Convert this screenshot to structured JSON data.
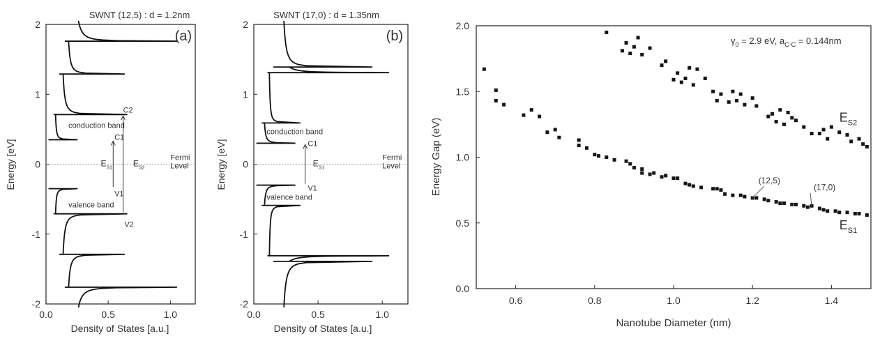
{
  "chart_data": [
    {
      "type": "line",
      "title": "SWNT (12,5) : d = 1.2nm",
      "panel_label": "(a)",
      "xlabel": "Density of States [a.u.]",
      "ylabel": "Energy [eV]",
      "xlim": [
        0,
        1.2
      ],
      "ylim": [
        -2,
        2
      ],
      "xticks": [
        0,
        0.5,
        1
      ],
      "xtick_labels": [
        "0.0",
        "0.5",
        "1.0"
      ],
      "yticks": [
        -2,
        -1,
        0,
        1,
        2
      ],
      "ytick_labels": [
        "-2",
        "-1",
        "0",
        "1",
        "2"
      ],
      "van_hove_singularities": [
        {
          "energy": 0.35,
          "height": 0.25
        },
        {
          "energy": 0.71,
          "height": 0.65
        },
        {
          "energy": 1.29,
          "height": 0.63
        },
        {
          "energy": 1.76,
          "height": 1.05
        },
        {
          "energy": -0.35,
          "height": 0.25
        },
        {
          "energy": -0.71,
          "height": 0.65
        },
        {
          "energy": -1.29,
          "height": 0.63
        },
        {
          "energy": -1.76,
          "height": 1.05
        }
      ],
      "annotations": [
        {
          "text": "conduction band",
          "x": 0.18,
          "y": 0.56
        },
        {
          "text": "valence band",
          "x": 0.18,
          "y": -0.58
        },
        {
          "text": "C2",
          "x": 0.62,
          "y": 0.78
        },
        {
          "text": "C1",
          "x": 0.55,
          "y": 0.39
        },
        {
          "text": "V1",
          "x": 0.55,
          "y": -0.42
        },
        {
          "text": "V2",
          "x": 0.63,
          "y": -0.86
        },
        {
          "text": "Fermi",
          "x": 1.0,
          "y": 0.1
        },
        {
          "text": "Level",
          "x": 1.0,
          "y": -0.02
        }
      ],
      "gap_labels": [
        {
          "main": "E",
          "sub": "S1",
          "x": 0.44,
          "y": 0.01
        },
        {
          "main": "E",
          "sub": "S2",
          "x": 0.7,
          "y": 0.01
        }
      ]
    },
    {
      "type": "line",
      "title": "SWNT (17,0) : d = 1.35nm",
      "panel_label": "(b)",
      "xlabel": "Density of States [a.u.]",
      "ylabel": "Energy [eV]",
      "xlim": [
        0,
        1.2
      ],
      "ylim": [
        -2,
        2
      ],
      "xticks": [
        0,
        0.5,
        1
      ],
      "xtick_labels": [
        "0.0",
        "0.5",
        "1.0"
      ],
      "yticks": [
        -2,
        -1,
        0,
        1,
        2
      ],
      "ytick_labels": [
        "-2",
        "-1",
        "0",
        "1",
        "2"
      ],
      "van_hove_singularities": [
        {
          "energy": 0.3,
          "height": 0.32
        },
        {
          "energy": 0.59,
          "height": 0.36
        },
        {
          "energy": 1.31,
          "height": 1.05
        },
        {
          "energy": 1.39,
          "height": 0.92
        },
        {
          "energy": -0.3,
          "height": 0.32
        },
        {
          "energy": -0.59,
          "height": 0.36
        },
        {
          "energy": -1.31,
          "height": 1.05
        },
        {
          "energy": -1.39,
          "height": 0.92
        }
      ],
      "annotations": [
        {
          "text": "conduction band",
          "x": 0.1,
          "y": 0.47
        },
        {
          "text": "valence band",
          "x": 0.1,
          "y": -0.47
        },
        {
          "text": "C1",
          "x": 0.42,
          "y": 0.3
        },
        {
          "text": "V1",
          "x": 0.42,
          "y": -0.34
        },
        {
          "text": "Fermi",
          "x": 1.0,
          "y": 0.1
        },
        {
          "text": "Level",
          "x": 1.0,
          "y": -0.02
        }
      ],
      "gap_labels": [
        {
          "main": "E",
          "sub": "S1",
          "x": 0.46,
          "y": 0.01
        }
      ]
    },
    {
      "type": "scatter",
      "xlabel": "Nanotube Diameter (nm)",
      "ylabel": "Energy Gap (eV)",
      "xlim": [
        0.5,
        1.5
      ],
      "ylim": [
        0,
        2
      ],
      "xticks": [
        0.6,
        0.8,
        1.0,
        1.2,
        1.4
      ],
      "xtick_labels": [
        "0.6",
        "0.8",
        "1.0",
        "1.2",
        "1.4"
      ],
      "yticks": [
        0,
        0.5,
        1,
        1.5,
        2
      ],
      "ytick_labels": [
        "0.0",
        "0.5",
        "1.0",
        "1.5",
        "2.0"
      ],
      "parameter_text": {
        "gamma": "γ",
        "gamma_sub": "0",
        "gamma_rest": " = 2.9 eV,  a",
        "a_sub": "C-C",
        "a_rest": " = 0.144nm"
      },
      "series_labels": [
        {
          "main": "E",
          "sub": "S2",
          "x": 1.42,
          "y": 1.27
        },
        {
          "main": "E",
          "sub": "S1",
          "x": 1.42,
          "y": 0.45
        }
      ],
      "annotations": [
        {
          "text": "(12,5)",
          "x": 1.215,
          "y": 0.8,
          "target_x": 1.2,
          "target_y": 0.69
        },
        {
          "text": "(17,0)",
          "x": 1.355,
          "y": 0.75,
          "target_x": 1.35,
          "target_y": 0.63
        }
      ],
      "series": [
        {
          "x": [
            0.52,
            0.55,
            0.55,
            0.57,
            0.62,
            0.64,
            0.66,
            0.68,
            0.7,
            0.71,
            0.76,
            0.76,
            0.78,
            0.8,
            0.81,
            0.83,
            0.85,
            0.88,
            0.89,
            0.9,
            0.92,
            0.92,
            0.94,
            0.95,
            0.97,
            0.98,
            1.0,
            1.01,
            1.03,
            1.04,
            1.05,
            1.07,
            1.1,
            1.11,
            1.12,
            1.13,
            1.15,
            1.17,
            1.18,
            1.2,
            1.21,
            1.23,
            1.24,
            1.26,
            1.27,
            1.28,
            1.3,
            1.31,
            1.33,
            1.34,
            1.35,
            1.37,
            1.38,
            1.39,
            1.41,
            1.42,
            1.44,
            1.46,
            1.47,
            1.49
          ],
          "y": [
            1.67,
            1.51,
            1.43,
            1.4,
            1.32,
            1.36,
            1.31,
            1.19,
            1.21,
            1.15,
            1.13,
            1.09,
            1.07,
            1.02,
            1.01,
            1.0,
            0.98,
            0.97,
            0.95,
            0.92,
            0.91,
            0.88,
            0.87,
            0.88,
            0.85,
            0.86,
            0.84,
            0.84,
            0.8,
            0.79,
            0.78,
            0.77,
            0.76,
            0.76,
            0.75,
            0.72,
            0.71,
            0.71,
            0.7,
            0.69,
            0.69,
            0.68,
            0.67,
            0.66,
            0.65,
            0.65,
            0.64,
            0.64,
            0.63,
            0.62,
            0.63,
            0.61,
            0.6,
            0.59,
            0.59,
            0.58,
            0.58,
            0.57,
            0.57,
            0.56
          ]
        },
        {
          "x": [
            0.83,
            0.87,
            0.88,
            0.89,
            0.9,
            0.91,
            0.92,
            0.94,
            0.97,
            0.98,
            1.0,
            1.01,
            1.02,
            1.03,
            1.04,
            1.05,
            1.06,
            1.08,
            1.1,
            1.11,
            1.12,
            1.14,
            1.15,
            1.16,
            1.17,
            1.18,
            1.2,
            1.21,
            1.24,
            1.25,
            1.26,
            1.27,
            1.28,
            1.29,
            1.3,
            1.31,
            1.33,
            1.35,
            1.37,
            1.38,
            1.39,
            1.4,
            1.42,
            1.44,
            1.45,
            1.47,
            1.48,
            1.49
          ],
          "y": [
            1.95,
            1.81,
            1.87,
            1.79,
            1.84,
            1.91,
            1.78,
            1.83,
            1.7,
            1.73,
            1.59,
            1.64,
            1.57,
            1.6,
            1.68,
            1.55,
            1.67,
            1.6,
            1.5,
            1.43,
            1.48,
            1.42,
            1.5,
            1.43,
            1.48,
            1.4,
            1.45,
            1.39,
            1.31,
            1.33,
            1.27,
            1.36,
            1.25,
            1.34,
            1.3,
            1.28,
            1.23,
            1.18,
            1.18,
            1.21,
            1.14,
            1.23,
            1.19,
            1.17,
            1.12,
            1.14,
            1.1,
            1.08
          ]
        }
      ]
    }
  ]
}
